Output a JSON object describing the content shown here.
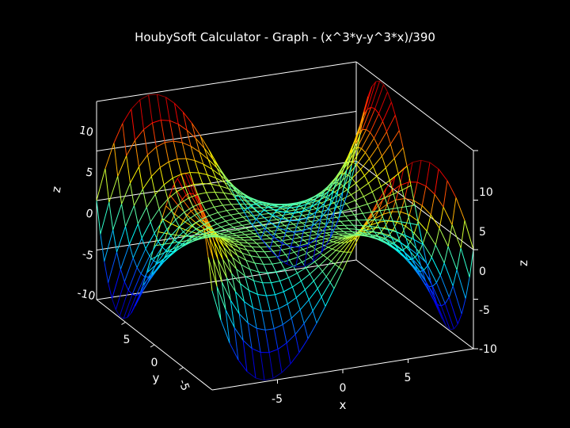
{
  "chart_data": {
    "type": "surface",
    "title": "HoubySoft Calculator - Graph - (x^3*y-y^3*x)/390",
    "function": "(x^3*y-y^3*x)/390",
    "xlabel": "x",
    "ylabel": "y",
    "zlabel": "z",
    "xlim": [
      -10,
      10
    ],
    "ylim": [
      -10,
      10
    ],
    "zlim": [
      -10,
      10
    ],
    "grid_divisions": 30,
    "x_ticks": [
      "-5",
      "0",
      "5"
    ],
    "y_ticks": [
      "5",
      "0",
      "-5"
    ],
    "z_ticks_left": [
      "10",
      "5",
      "0",
      "-5",
      "-10"
    ],
    "z_ticks_right": [
      "10",
      "5",
      "0",
      "-5",
      "-10"
    ],
    "background_color": "#000000",
    "box_color": "#ffffff",
    "colormap": "jet",
    "show_box": true
  }
}
